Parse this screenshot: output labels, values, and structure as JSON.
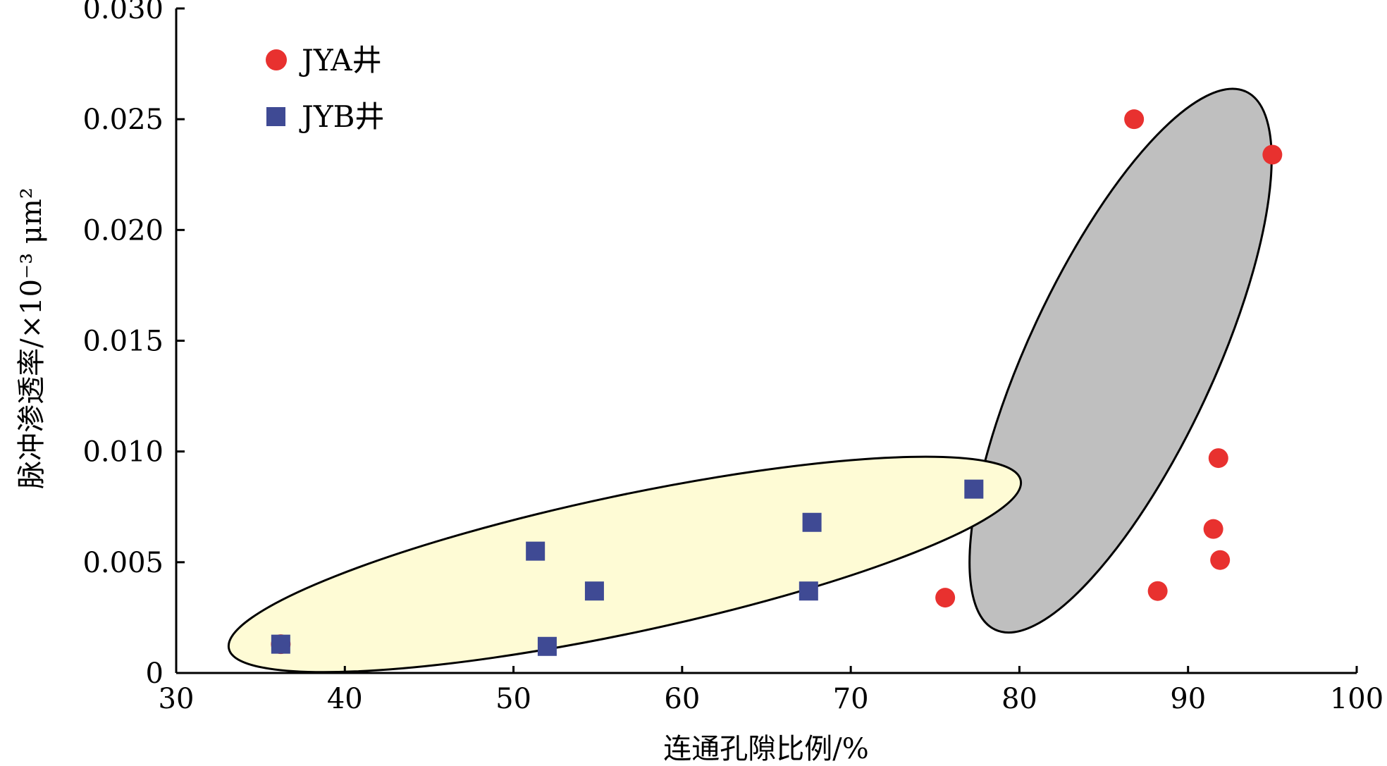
{
  "chart_data": {
    "type": "scatter",
    "title": "",
    "xlabel": "连通孔隙比例/%",
    "ylabel": "脉冲渗透率/×10⁻³ μm²",
    "xlim": [
      30,
      100
    ],
    "ylim": [
      0,
      0.03
    ],
    "x_ticks": [
      "30",
      "40",
      "50",
      "60",
      "70",
      "80",
      "90",
      "100"
    ],
    "y_ticks": [
      "0",
      "0.005",
      "0.010",
      "0.015",
      "0.020",
      "0.025",
      "0.030"
    ],
    "legend_position": "top-left",
    "series": [
      {
        "name": "JYA井",
        "marker": "circle",
        "color": "#e8312f",
        "points": [
          {
            "x": 36.2,
            "y": 0.0013
          },
          {
            "x": 75.6,
            "y": 0.0034
          },
          {
            "x": 86.8,
            "y": 0.025
          },
          {
            "x": 95.0,
            "y": 0.0234
          },
          {
            "x": 88.2,
            "y": 0.0037
          },
          {
            "x": 91.5,
            "y": 0.0065
          },
          {
            "x": 91.8,
            "y": 0.0097
          },
          {
            "x": 91.9,
            "y": 0.0051
          }
        ]
      },
      {
        "name": "JYB井",
        "marker": "square",
        "color": "#3f4a94",
        "points": [
          {
            "x": 36.2,
            "y": 0.0013
          },
          {
            "x": 51.3,
            "y": 0.0055
          },
          {
            "x": 52.0,
            "y": 0.0012
          },
          {
            "x": 54.8,
            "y": 0.0037
          },
          {
            "x": 67.5,
            "y": 0.0037
          },
          {
            "x": 67.7,
            "y": 0.0068
          },
          {
            "x": 77.3,
            "y": 0.0083
          }
        ]
      }
    ],
    "groupings": [
      {
        "fill": "#bfbfbf",
        "center": [
          86.0,
          0.0141
        ],
        "rx": 5.5,
        "ry": 0.0134,
        "rotation_deg": 25
      },
      {
        "fill": "#fefbd5",
        "center": [
          56.6,
          0.0049
        ],
        "rx": 24.0,
        "ry": 0.0031,
        "rotation_deg": -12
      }
    ]
  }
}
